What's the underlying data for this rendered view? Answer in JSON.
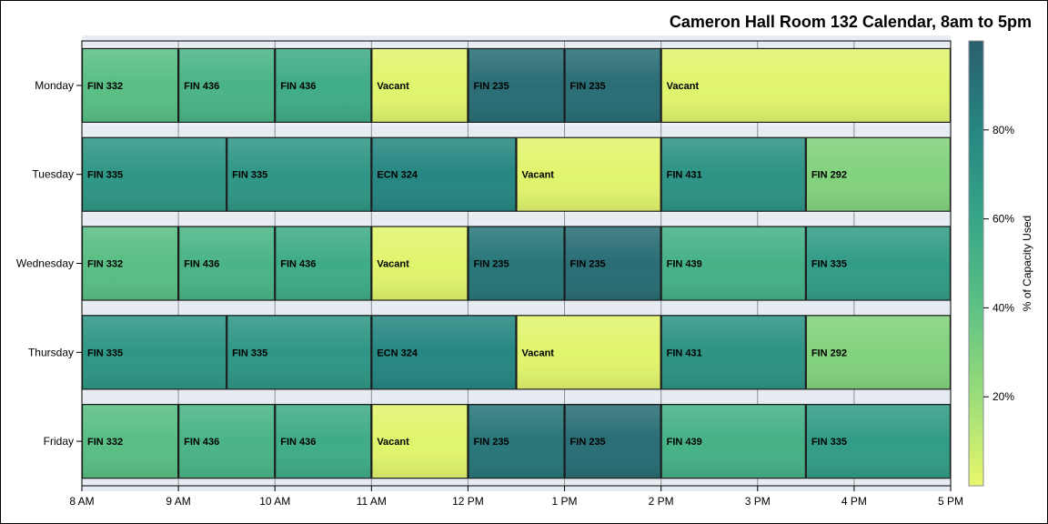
{
  "chart_data": {
    "type": "bar",
    "subtype": "horizontal-timeline",
    "title": "Cameron Hall Room 132 Calendar, 8am to 5pm",
    "x_ticks": [
      "8 AM",
      "9 AM",
      "10 AM",
      "11 AM",
      "12 PM",
      "1 PM",
      "2 PM",
      "3 PM",
      "4 PM",
      "5 PM"
    ],
    "x_range_hours": [
      8,
      17
    ],
    "categories": [
      "Monday",
      "Tuesday",
      "Wednesday",
      "Thursday",
      "Friday"
    ],
    "colorbar": {
      "label": "% of Capacity Used",
      "range": [
        0,
        100
      ],
      "ticks": [
        "20%",
        "40%",
        "60%",
        "80%"
      ],
      "tick_values": [
        20,
        40,
        60,
        80
      ],
      "colors": [
        "#e9f76c",
        "#9bdd79",
        "#5dc184",
        "#37a688",
        "#268681",
        "#2a5f6e"
      ]
    },
    "rows": [
      {
        "day": "Monday",
        "segments": [
          {
            "start": 8,
            "end": 9,
            "label": "FIN 332",
            "capacity": 42
          },
          {
            "start": 9,
            "end": 10,
            "label": "FIN 436",
            "capacity": 50
          },
          {
            "start": 10,
            "end": 11,
            "label": "FIN 436",
            "capacity": 56
          },
          {
            "start": 11,
            "end": 12,
            "label": "Vacant",
            "capacity": 2
          },
          {
            "start": 12,
            "end": 13,
            "label": "FIN 235",
            "capacity": 93
          },
          {
            "start": 13,
            "end": 14,
            "label": "FIN 235",
            "capacity": 93
          },
          {
            "start": 14,
            "end": 17,
            "label": "Vacant",
            "capacity": 2
          }
        ]
      },
      {
        "day": "Tuesday",
        "segments": [
          {
            "start": 8,
            "end": 9.5,
            "label": "FIN 335",
            "capacity": 70
          },
          {
            "start": 9.5,
            "end": 11,
            "label": "FIN 335",
            "capacity": 70
          },
          {
            "start": 11,
            "end": 12.5,
            "label": "ECN 324",
            "capacity": 80
          },
          {
            "start": 12.5,
            "end": 14,
            "label": "Vacant",
            "capacity": 2
          },
          {
            "start": 14,
            "end": 15.5,
            "label": "FIN 431",
            "capacity": 72
          },
          {
            "start": 15.5,
            "end": 17,
            "label": "FIN 292",
            "capacity": 28
          }
        ]
      },
      {
        "day": "Wednesday",
        "segments": [
          {
            "start": 8,
            "end": 9,
            "label": "FIN 332",
            "capacity": 42
          },
          {
            "start": 9,
            "end": 10,
            "label": "FIN 436",
            "capacity": 50
          },
          {
            "start": 10,
            "end": 11,
            "label": "FIN 436",
            "capacity": 56
          },
          {
            "start": 11,
            "end": 12,
            "label": "Vacant",
            "capacity": 2
          },
          {
            "start": 12,
            "end": 13,
            "label": "FIN 235",
            "capacity": 88
          },
          {
            "start": 13,
            "end": 14,
            "label": "FIN 235",
            "capacity": 93
          },
          {
            "start": 14,
            "end": 15.5,
            "label": "FIN 439",
            "capacity": 52
          },
          {
            "start": 15.5,
            "end": 17,
            "label": "FIN 335",
            "capacity": 66
          }
        ]
      },
      {
        "day": "Thursday",
        "segments": [
          {
            "start": 8,
            "end": 9.5,
            "label": "FIN 335",
            "capacity": 70
          },
          {
            "start": 9.5,
            "end": 11,
            "label": "FIN 335",
            "capacity": 70
          },
          {
            "start": 11,
            "end": 12.5,
            "label": "ECN 324",
            "capacity": 80
          },
          {
            "start": 12.5,
            "end": 14,
            "label": "Vacant",
            "capacity": 2
          },
          {
            "start": 14,
            "end": 15.5,
            "label": "FIN 431",
            "capacity": 72
          },
          {
            "start": 15.5,
            "end": 17,
            "label": "FIN 292",
            "capacity": 28
          }
        ]
      },
      {
        "day": "Friday",
        "segments": [
          {
            "start": 8,
            "end": 9,
            "label": "FIN 332",
            "capacity": 42
          },
          {
            "start": 9,
            "end": 10,
            "label": "FIN 436",
            "capacity": 50
          },
          {
            "start": 10,
            "end": 11,
            "label": "FIN 436",
            "capacity": 56
          },
          {
            "start": 11,
            "end": 12,
            "label": "Vacant",
            "capacity": 2
          },
          {
            "start": 12,
            "end": 13,
            "label": "FIN 235",
            "capacity": 88
          },
          {
            "start": 13,
            "end": 14,
            "label": "FIN 235",
            "capacity": 93
          },
          {
            "start": 14,
            "end": 15.5,
            "label": "FIN 439",
            "capacity": 52
          },
          {
            "start": 15.5,
            "end": 17,
            "label": "FIN 335",
            "capacity": 66
          }
        ]
      }
    ]
  }
}
